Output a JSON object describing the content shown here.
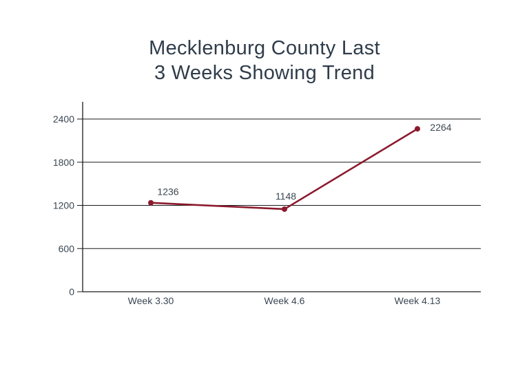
{
  "chart_data": {
    "type": "line",
    "title_lines": [
      "Mecklenburg County Last",
      "3 Weeks Showing Trend"
    ],
    "xlabel": "",
    "ylabel": "",
    "categories": [
      "Week 3.30",
      "Week 4.6",
      "Week 4.13"
    ],
    "series": [
      {
        "values": [
          1236,
          1148,
          2264
        ],
        "color": "#8b1a2e"
      }
    ],
    "data_labels": [
      "1236",
      "1148",
      "2264"
    ],
    "yticks": [
      0,
      600,
      1200,
      1800,
      2400
    ],
    "ytick_labels": [
      "0",
      "600",
      "1200",
      "1800",
      "2400"
    ],
    "ylim": [
      0,
      2400
    ],
    "grid": true,
    "legend": "none"
  },
  "colors": {
    "title": "#2f3c4a",
    "axis_text": "#3a4652",
    "line": "#8b1a2e",
    "grid": "#1a1a1a"
  }
}
